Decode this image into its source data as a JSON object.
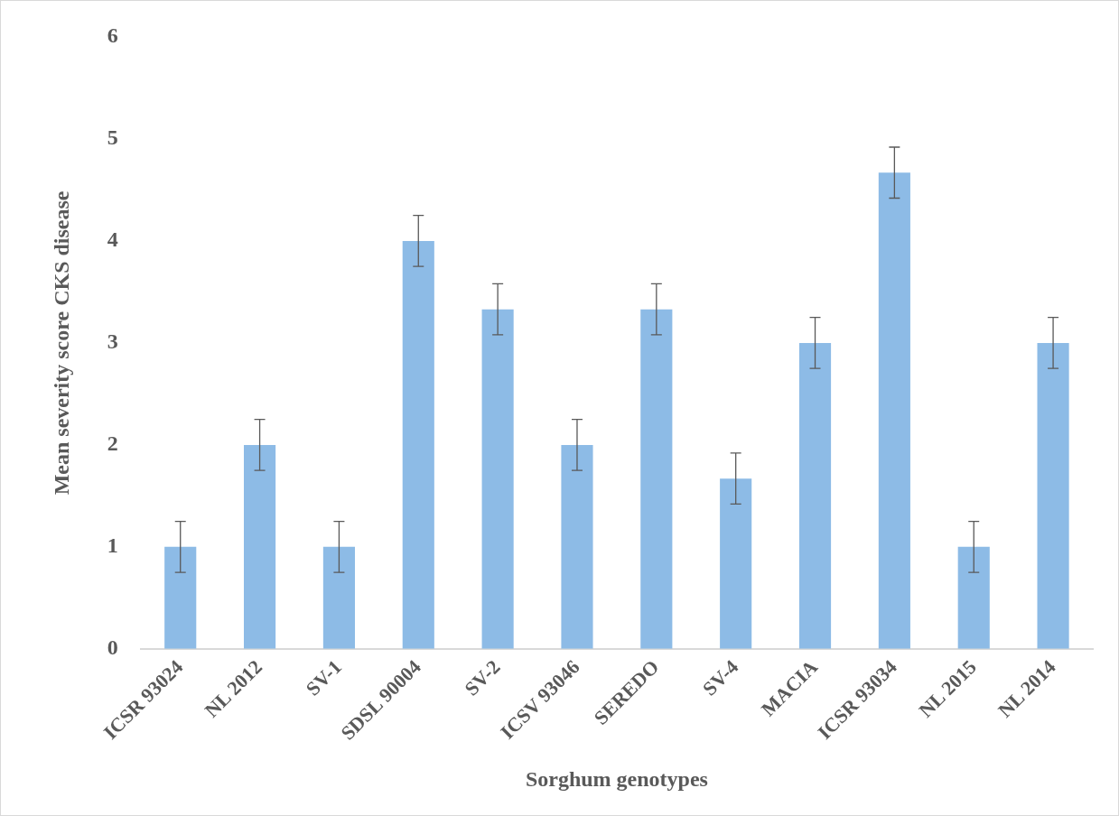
{
  "chart_data": {
    "type": "bar",
    "xlabel": "Sorghum genotypes",
    "ylabel": "Mean severity score CKS disease",
    "categories": [
      "ICSR 93024",
      "NL 2012",
      "SV-1",
      "SDSL 90004",
      "SV-2",
      "ICSV 93046",
      "SEREDO",
      "SV-4",
      "MACIA",
      "ICSR 93034",
      "NL 2015",
      "NL 2014"
    ],
    "values": [
      1,
      2,
      1,
      4,
      3.33,
      2,
      3.33,
      1.67,
      3,
      4.67,
      1,
      3
    ],
    "errors": [
      0.25,
      0.25,
      0.25,
      0.25,
      0.25,
      0.25,
      0.25,
      0.25,
      0.25,
      0.25,
      0.25,
      0.25
    ],
    "color": "#8dbbe6",
    "ylim": [
      0,
      6
    ],
    "yticks": [
      0,
      1,
      2,
      3,
      4,
      5,
      6
    ],
    "grid": false,
    "legend": false
  }
}
